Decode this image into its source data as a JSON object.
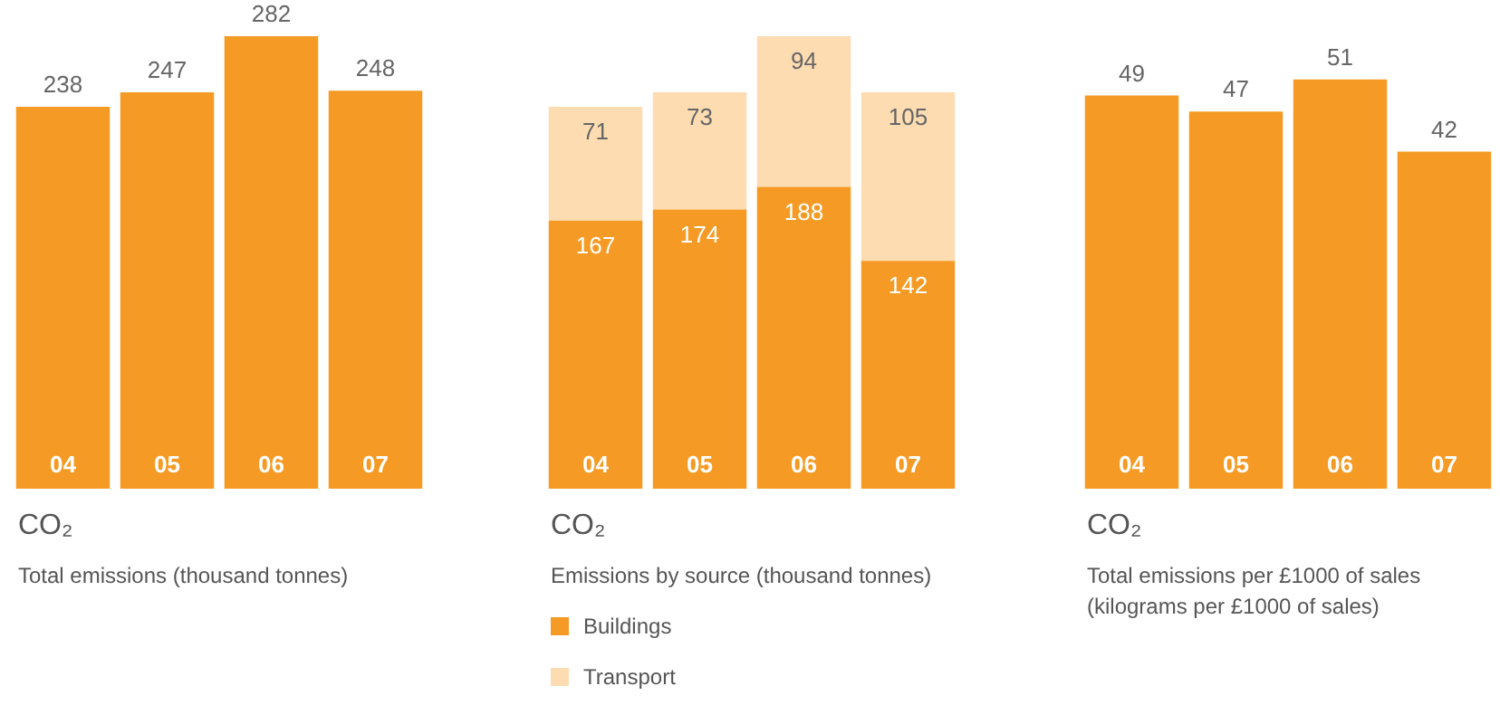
{
  "chart_data": [
    {
      "type": "bar",
      "title": "CO₂",
      "subtitle": "Total emissions (thousand tonnes)",
      "categories": [
        "04",
        "05",
        "06",
        "07"
      ],
      "values": [
        238,
        247,
        282,
        248
      ],
      "color": "#f59b25",
      "data_labels": true
    },
    {
      "type": "bar",
      "title": "CO₂",
      "subtitle": "Emissions by source (thousand tonnes)",
      "categories": [
        "04",
        "05",
        "06",
        "07"
      ],
      "stacked": true,
      "series": [
        {
          "name": "Buildings",
          "color": "#f59b25",
          "values": [
            167,
            174,
            188,
            142
          ]
        },
        {
          "name": "Transport",
          "color": "#fddcb2",
          "values": [
            71,
            73,
            94,
            105
          ]
        }
      ],
      "data_labels": true,
      "legend": "bottom"
    },
    {
      "type": "bar",
      "title": "CO₂",
      "subtitle": "Total emissions per £1000 of sales (kilograms per £1000 of sales)",
      "categories": [
        "04",
        "05",
        "06",
        "07"
      ],
      "values": [
        49,
        47,
        51,
        42
      ],
      "color": "#f59b25",
      "data_labels": true
    }
  ]
}
